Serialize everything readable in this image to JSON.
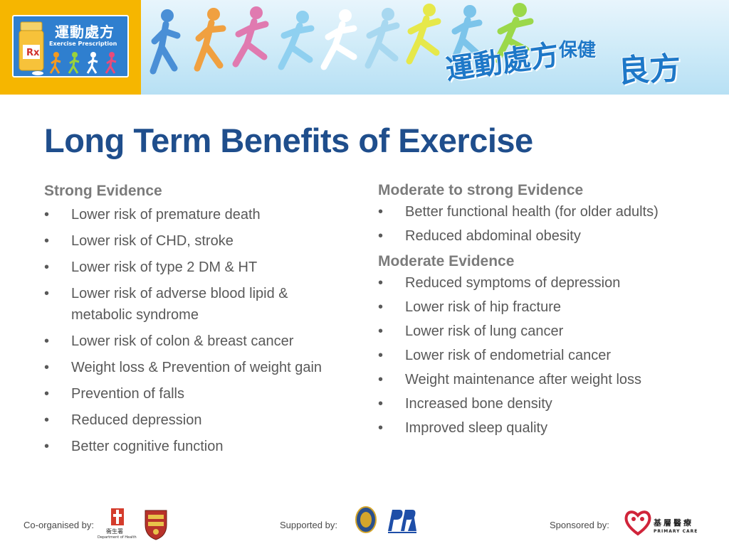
{
  "banner": {
    "logo_title": "運動處方",
    "logo_subtitle": "Exercise Prescription",
    "slogan_part1": "運動處方",
    "slogan_part2": "保健",
    "slogan_part3": "良方"
  },
  "title": "Long Term Benefits of Exercise",
  "left_column": {
    "heading": "Strong Evidence",
    "bullet_symbol": "•",
    "items": [
      "Lower risk of premature death",
      "Lower risk of CHD, stroke",
      "Lower risk of type 2 DM & HT",
      "Lower risk of adverse blood lipid & metabolic syndrome",
      "Lower risk of colon & breast cancer",
      "Weight loss & Prevention of weight gain",
      "Prevention of falls",
      "Reduced depression",
      "Better cognitive function"
    ]
  },
  "right_column": {
    "heading_1": "Moderate to strong Evidence",
    "items_1": [
      "Better functional health (for older adults)",
      "Reduced abdominal obesity"
    ],
    "heading_2": "Moderate Evidence",
    "items_2": [
      "Reduced symptoms of depression",
      "Lower risk of hip fracture",
      "Lower risk of lung cancer",
      "Lower risk of endometrial cancer",
      "Weight maintenance after weight loss",
      "Increased bone density",
      "Improved sleep quality"
    ]
  },
  "footer": {
    "co_organised": "Co-organised by:",
    "supported": "Supported by:",
    "sponsored": "Sponsored by:",
    "doh_cn": "衞生署",
    "doh_en": "Department of Health",
    "primary_care_cn": "基層醫療",
    "primary_care_en": "PRIMARY CARE"
  },
  "colors": {
    "title": "#1f4e8c",
    "heading": "#7b7b7b",
    "body": "#595959",
    "banner_yellow": "#f6b600",
    "banner_blue": "#2f7fcf"
  },
  "icons": [
    "pill-bottle-icon",
    "runner-figure-icon",
    "medical-crest-icon",
    "badge-icon",
    "heart-hands-icon"
  ]
}
